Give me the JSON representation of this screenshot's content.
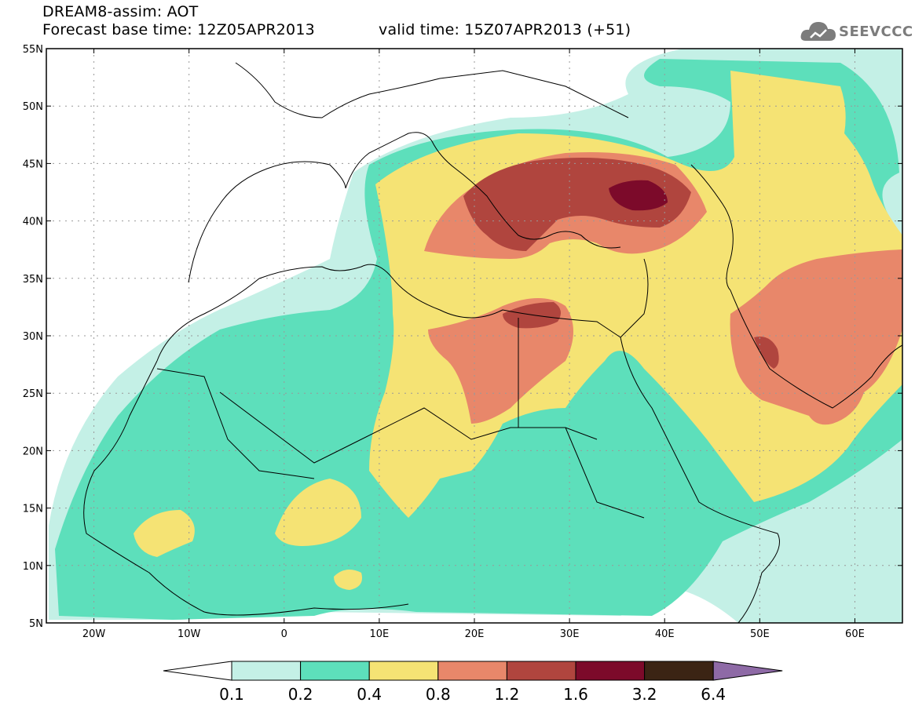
{
  "header": {
    "title_line1": "DREAM8-assim: AOT",
    "base_time": "Forecast base time: 12Z05APR2013",
    "valid_time": "valid time: 15Z07APR2013 (+51)"
  },
  "logo": {
    "text": "SEEVCCC",
    "icon": "cloud-logo-icon",
    "color": "#7c7c7c"
  },
  "map": {
    "lat_labels": [
      "55N",
      "50N",
      "45N",
      "40N",
      "35N",
      "30N",
      "25N",
      "20N",
      "15N",
      "10N",
      "5N"
    ],
    "lat_values": [
      55,
      50,
      45,
      40,
      35,
      30,
      25,
      20,
      15,
      10,
      5
    ],
    "lon_labels": [
      "20W",
      "10W",
      "0",
      "10E",
      "20E",
      "30E",
      "40E",
      "50E",
      "60E"
    ],
    "lon_values": [
      -20,
      -10,
      0,
      10,
      20,
      30,
      40,
      50,
      60
    ],
    "lon_range": [
      -25,
      65
    ],
    "lat_range": [
      5,
      55
    ]
  },
  "colorbar": {
    "labels": [
      "0.1",
      "0.2",
      "0.4",
      "0.8",
      "1.2",
      "1.6",
      "3.2",
      "6.4"
    ],
    "colors": [
      "#c4f0e6",
      "#5ddfbb",
      "#f5e374",
      "#e8876a",
      "#b0453e",
      "#7c0a2a",
      "#3b2414"
    ],
    "under_color": "#ffffff",
    "over_color": "#8e6aa6"
  }
}
